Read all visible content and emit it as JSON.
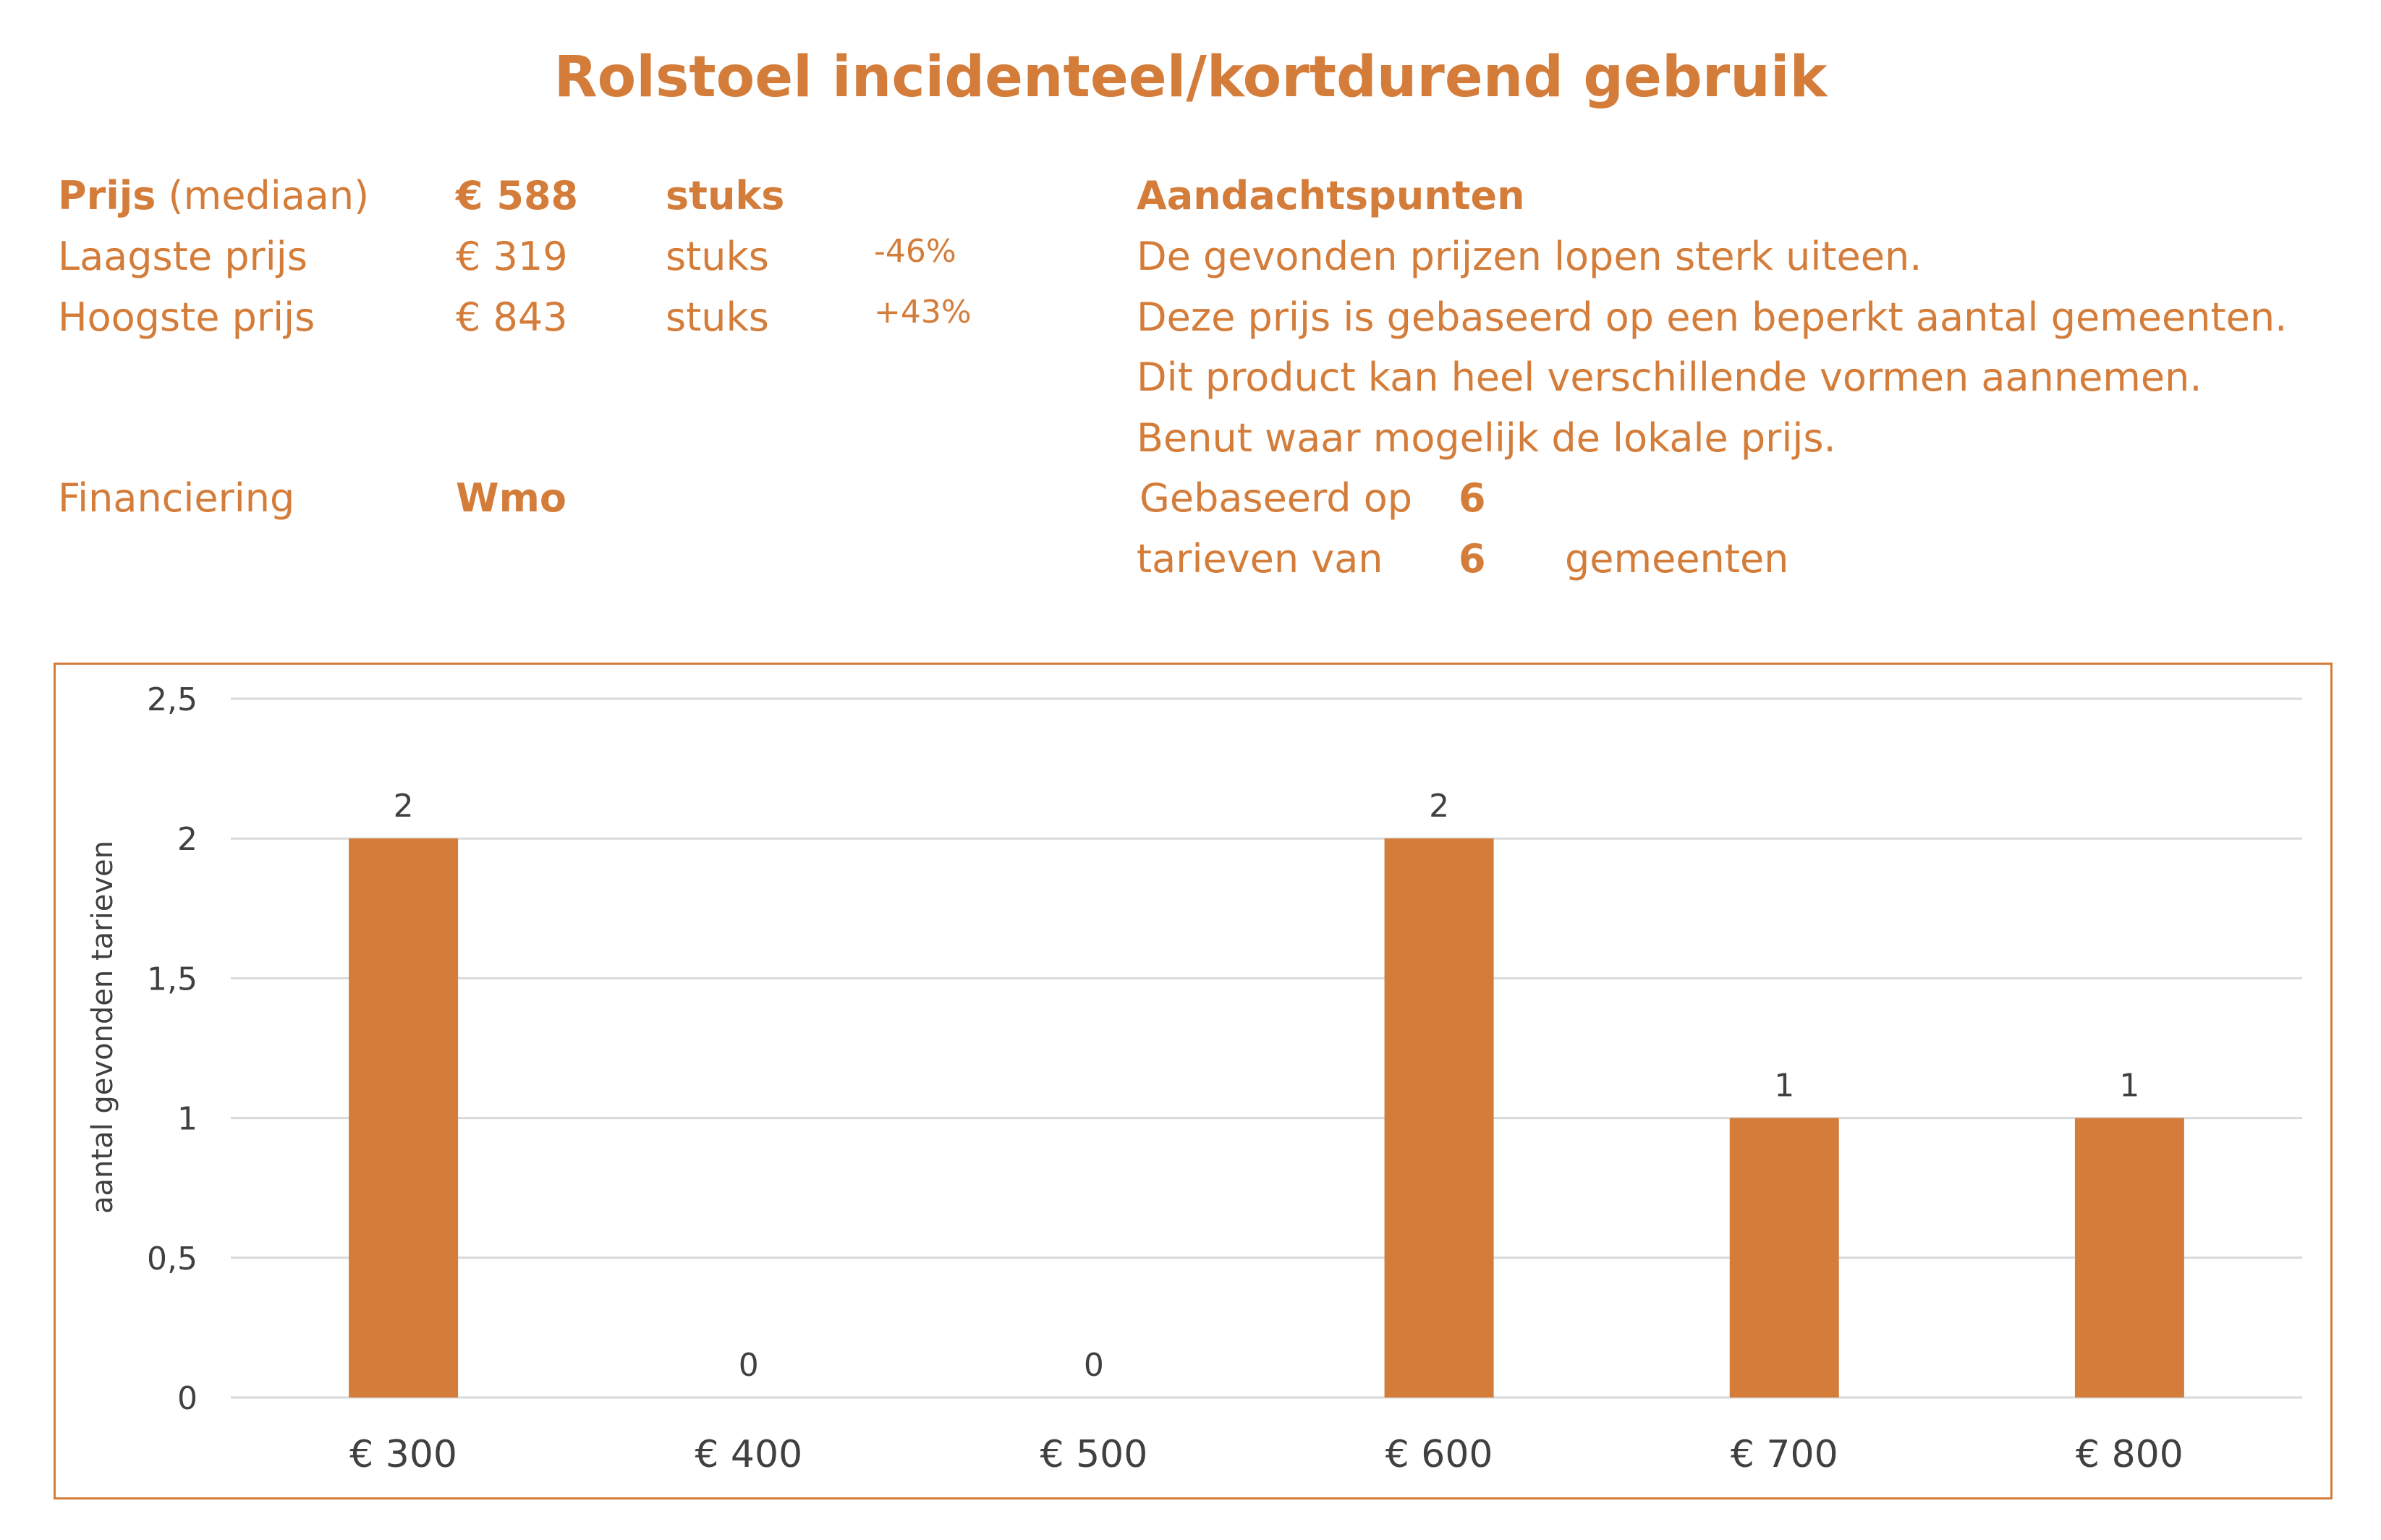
{
  "title": "Rolstoel incidenteel/kortdurend gebruik",
  "left": {
    "median_label_bold": "Prijs",
    "median_label_rest": "(mediaan)",
    "median_value": "€ 588",
    "median_unit": "stuks",
    "low_label": "Laagste prijs",
    "low_value": "€ 319",
    "low_unit": "stuks",
    "low_pct": "-46%",
    "high_label": "Hoogste prijs",
    "high_value": "€ 843",
    "high_unit": "stuks",
    "high_pct": "+43%",
    "fin_label": "Financiering",
    "fin_value": "Wmo"
  },
  "right": {
    "heading": "Aandachtspunten",
    "notes": [
      "De gevonden prijzen lopen sterk uiteen.",
      "Deze prijs is gebaseerd op een beperkt aantal gemeenten.",
      "Dit product kan heel verschillende vormen aannemen.",
      "Benut waar mogelijk de lokale prijs."
    ],
    "based_label": "Gebaseerd op",
    "based_value": "6",
    "rates_label": "tarieven van",
    "rates_value": "6",
    "rates_suffix": "gemeenten"
  },
  "colors": {
    "accent": "#D47D3A",
    "grid": "#D9D9D9",
    "text": "#404040"
  },
  "chart_data": {
    "type": "bar",
    "title": "",
    "categories": [
      "€ 300",
      "€ 400",
      "€ 500",
      "€ 600",
      "€ 700",
      "€ 800"
    ],
    "values": [
      2,
      0,
      0,
      2,
      1,
      1
    ],
    "data_labels": [
      "2",
      "0",
      "0",
      "2",
      "1",
      "1"
    ],
    "xlabel": "",
    "ylabel": "aantal gevonden tarieven",
    "ylim": [
      0,
      2.5
    ],
    "yticks": [
      0,
      0.5,
      1,
      1.5,
      2,
      2.5
    ],
    "ytick_labels": [
      "0",
      "0,5",
      "1",
      "1,5",
      "2",
      "2,5"
    ],
    "grid": true,
    "legend": "none"
  }
}
